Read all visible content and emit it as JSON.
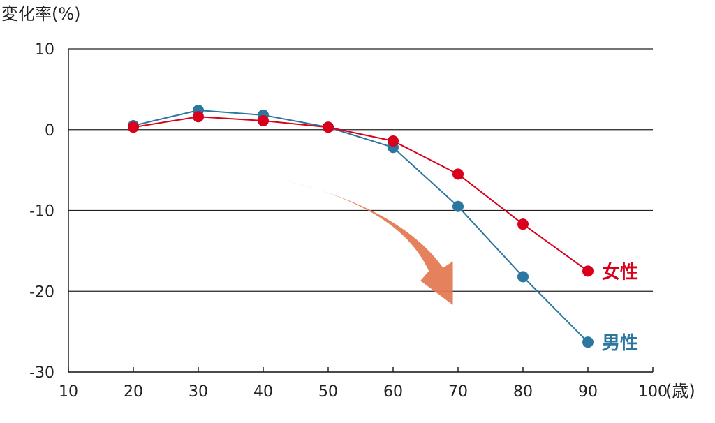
{
  "chart_data": {
    "type": "line",
    "ylabel": "変化率(%)",
    "xlabel": "(歳)",
    "xlim": [
      10,
      100
    ],
    "ylim": [
      -30,
      10
    ],
    "xticks": [
      10,
      20,
      30,
      40,
      50,
      60,
      70,
      80,
      90,
      100
    ],
    "yticks": [
      10,
      0,
      -10,
      -20,
      -30
    ],
    "grid": true,
    "x": [
      20,
      30,
      40,
      50,
      60,
      70,
      80,
      90
    ],
    "series": [
      {
        "name": "男性",
        "color": "#2b77a0",
        "values": [
          0.5,
          2.4,
          1.8,
          0.3,
          -2.2,
          -9.5,
          -18.2,
          -26.3
        ]
      },
      {
        "name": "女性",
        "color": "#d9001b",
        "values": [
          0.3,
          1.6,
          1.1,
          0.3,
          -1.4,
          -5.5,
          -11.7,
          -17.5
        ]
      }
    ],
    "annotation": {
      "type": "arrow",
      "color": "#e57a55",
      "meaning": "decline trend"
    }
  }
}
